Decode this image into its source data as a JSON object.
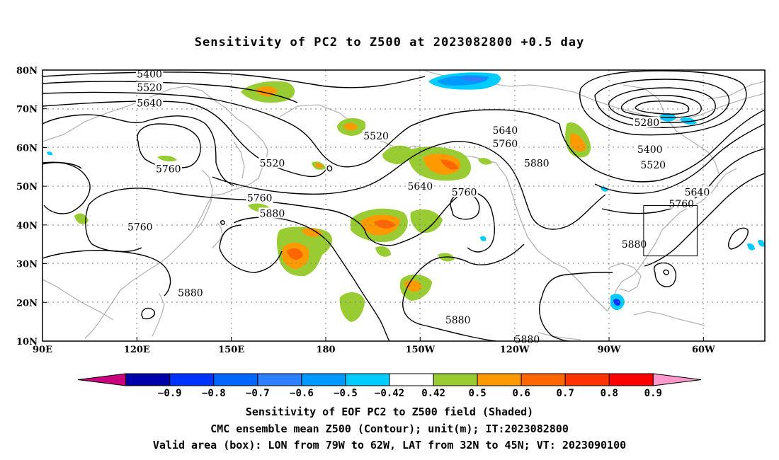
{
  "title": "Sensitivity of PC2 to Z500 at 2023082800 +0.5 day",
  "axes": {
    "lat_labels": [
      "80N",
      "70N",
      "60N",
      "50N",
      "40N",
      "30N",
      "20N",
      "10N"
    ],
    "lon_labels": [
      "90E",
      "120E",
      "150E",
      "180",
      "150W",
      "120W",
      "90W",
      "60W"
    ]
  },
  "contours": [
    {
      "label": "5400",
      "lon": 124,
      "lat": 79
    },
    {
      "label": "5520",
      "lon": 124,
      "lat": 75.5
    },
    {
      "label": "5640",
      "lon": 124,
      "lat": 71.5
    },
    {
      "label": "5760",
      "lon": 130,
      "lat": 54.5
    },
    {
      "label": "5760",
      "lon": 121,
      "lat": 39.5
    },
    {
      "label": "5520",
      "lon": 163,
      "lat": 56
    },
    {
      "label": "5520",
      "lon": 196,
      "lat": 63
    },
    {
      "label": "5640",
      "lon": 210,
      "lat": 50
    },
    {
      "label": "5760",
      "lon": 159,
      "lat": 47
    },
    {
      "label": "5880",
      "lon": 163,
      "lat": 43
    },
    {
      "label": "5760",
      "lon": 224,
      "lat": 48.5
    },
    {
      "label": "5640",
      "lon": 237,
      "lat": 64.5
    },
    {
      "label": "5760",
      "lon": 237,
      "lat": 61
    },
    {
      "label": "5880",
      "lon": 247,
      "lat": 56
    },
    {
      "label": "5880",
      "lon": 137,
      "lat": 22.5
    },
    {
      "label": "5880",
      "lon": 222,
      "lat": 15.5
    },
    {
      "label": "5880",
      "lon": 244,
      "lat": 10.5
    },
    {
      "label": "5280",
      "lon": 282,
      "lat": 66.5
    },
    {
      "label": "5400",
      "lon": 283,
      "lat": 59.5
    },
    {
      "label": "5520",
      "lon": 284,
      "lat": 55.5
    },
    {
      "label": "5640",
      "lon": 298,
      "lat": 48.5
    },
    {
      "label": "5760",
      "lon": 293,
      "lat": 45.5
    },
    {
      "label": "5880",
      "lon": 278,
      "lat": 35
    }
  ],
  "colorbar": {
    "colors": [
      "#cc007f",
      "#0000aa",
      "#0033ff",
      "#0066ff",
      "#2d7fff",
      "#0099ff",
      "#00ccff",
      "#ffffff",
      "#99cc33",
      "#ff9900",
      "#ff6600",
      "#ff3300",
      "#ff0000",
      "#ff99cc"
    ],
    "labels": [
      "−0.9",
      "−0.8",
      "−0.7",
      "−0.6",
      "−0.5",
      "−0.42",
      "0.42",
      "0.5",
      "0.6",
      "0.7",
      "0.8",
      "0.9"
    ]
  },
  "valid_box": {
    "lon_min": 281,
    "lon_max": 298,
    "lat_min": 32,
    "lat_max": 45
  },
  "captions": [
    "Sensitivity of EOF PC2 to Z500 field (Shaded)",
    "CMC ensemble mean Z500 (Contour); unit(m); IT:2023082800",
    "Valid area (box): LON from 79W to 62W, LAT from 32N to 45N; VT: 2023090100"
  ]
}
